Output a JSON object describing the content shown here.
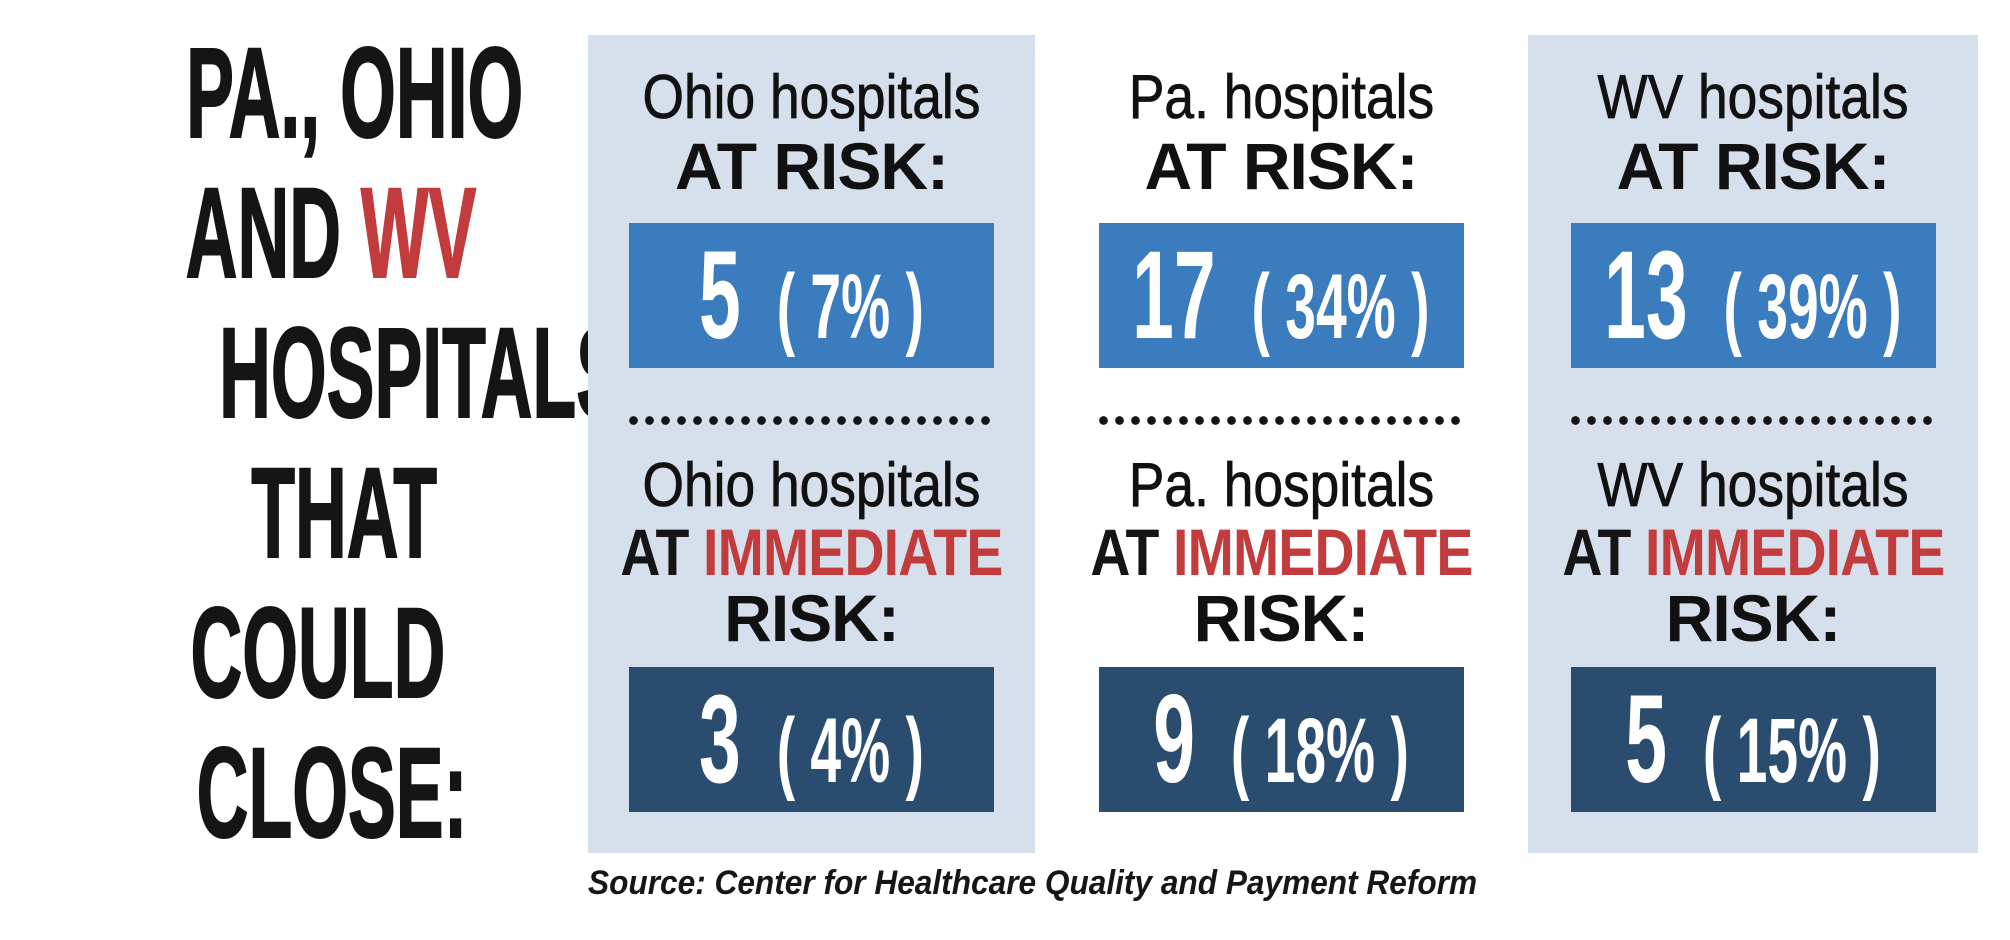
{
  "headline": {
    "line1": "PA., OHIO",
    "line2_prefix": "AND ",
    "line2_accent": "WV",
    "line3": "HOSPITALS",
    "line4": "THAT",
    "line5": "COULD",
    "line6": "CLOSE:"
  },
  "columns": [
    {
      "state": "Ohio",
      "at_risk": {
        "state_label": "Ohio hospitals",
        "risk_label": "AT RISK:",
        "count": "5",
        "percent": "( 7% )"
      },
      "immediate_risk": {
        "state_label": "Ohio hospitals",
        "at_word": "AT ",
        "immediate_word": "IMMEDIATE",
        "risk_label": "RISK:",
        "count": "3",
        "percent": "( 4% )"
      }
    },
    {
      "state": "Pa.",
      "at_risk": {
        "state_label": "Pa. hospitals",
        "risk_label": "AT RISK:",
        "count": "17",
        "percent": "( 34% )"
      },
      "immediate_risk": {
        "state_label": "Pa. hospitals",
        "at_word": "AT ",
        "immediate_word": "IMMEDIATE",
        "risk_label": "RISK:",
        "count": "9",
        "percent": "( 18% )"
      }
    },
    {
      "state": "WV",
      "at_risk": {
        "state_label": "WV hospitals",
        "risk_label": "AT RISK:",
        "count": "13",
        "percent": "( 39% )"
      },
      "immediate_risk": {
        "state_label": "WV hospitals",
        "at_word": "AT ",
        "immediate_word": "IMMEDIATE",
        "risk_label": "RISK:",
        "count": "5",
        "percent": "( 15% )"
      }
    }
  ],
  "source_note": "Source: Center for Healthcare Quality and Payment Reform",
  "colors": {
    "accent_red": "#c23b3d",
    "panel_light_blue": "#d6e0ed",
    "box_medium_blue": "#3a7cbd",
    "box_dark_navy": "#2a4d6f",
    "text_black": "#151515",
    "number_white": "#ffffff"
  },
  "chart_data": {
    "type": "table",
    "title": "Pa., Ohio and WV hospitals that could close",
    "categories": [
      "Ohio",
      "Pa.",
      "WV"
    ],
    "series": [
      {
        "name": "Hospitals at risk",
        "values": [
          5,
          17,
          13
        ],
        "percent_labels": [
          "7%",
          "34%",
          "39%"
        ]
      },
      {
        "name": "Hospitals at immediate risk",
        "values": [
          3,
          9,
          5
        ],
        "percent_labels": [
          "4%",
          "18%",
          "15%"
        ]
      }
    ],
    "source": "Center for Healthcare Quality and Payment Reform"
  }
}
